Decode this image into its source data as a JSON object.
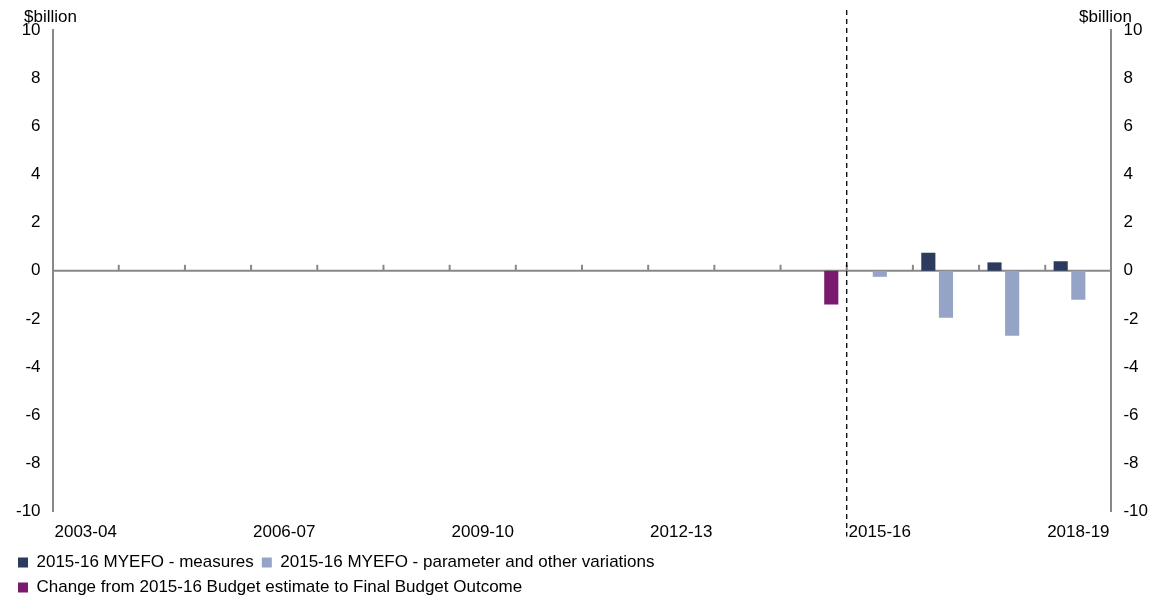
{
  "chart_data": {
    "type": "bar",
    "ylabel": "$billion",
    "y2label": "$billion",
    "categories": [
      "2003-04",
      null,
      null,
      "2006-07",
      null,
      null,
      "2009-10",
      null,
      null,
      "2012-13",
      null,
      null,
      "2015-16",
      null,
      null,
      "2018-19"
    ],
    "series": [
      {
        "name": "2015-16 MYEFO - measures",
        "color": "#2b3a5e",
        "values": [
          null,
          null,
          null,
          null,
          null,
          null,
          null,
          null,
          null,
          null,
          null,
          null,
          null,
          0.75,
          0.35,
          0.4
        ]
      },
      {
        "name": "2015-16 MYEFO - parameter and other variations",
        "color": "#94a3c6",
        "values": [
          null,
          null,
          null,
          null,
          null,
          null,
          null,
          null,
          null,
          null,
          null,
          null,
          -0.25,
          -1.95,
          -2.7,
          -1.2
        ]
      },
      {
        "name": "Change from 2015-16 Budget estimate to Final Budget Outcome",
        "color": "#7a1a6e",
        "values": [
          null,
          null,
          null,
          null,
          null,
          null,
          null,
          null,
          null,
          null,
          null,
          -1.4,
          null,
          null,
          null,
          null
        ]
      }
    ],
    "ylim": [
      -10,
      10
    ],
    "yticks": [
      -10,
      -8,
      -6,
      -4,
      -2,
      0,
      2,
      4,
      6,
      8,
      10
    ],
    "y2lim": [
      -10,
      10
    ],
    "y2ticks": [
      -10,
      -8,
      -6,
      -4,
      -2,
      0,
      2,
      4,
      6,
      8,
      10
    ],
    "ref_lines": [
      {
        "axis": "x",
        "value": "2015-16",
        "label": null,
        "color": "#000000",
        "line_style": "dashed"
      }
    ],
    "grid": false,
    "legend": "bottom"
  }
}
